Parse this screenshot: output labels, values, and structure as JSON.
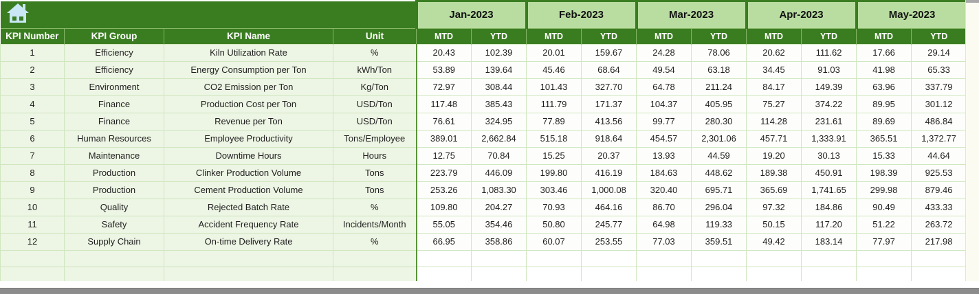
{
  "colors": {
    "header_dark_green": "#3A7D21",
    "month_light_green": "#B9DDA0",
    "row_tint_green": "#EDF5E4",
    "grid_border_green": "#CFE6BE",
    "home_icon_blue": "#C9E7F5",
    "bottom_bar_gray": "#8C8C8C"
  },
  "icons": {
    "home": "home-icon"
  },
  "table": {
    "left_headers": [
      "KPI Number",
      "KPI Group",
      "KPI Name",
      "Unit"
    ],
    "months": [
      "Jan-2023",
      "Feb-2023",
      "Mar-2023",
      "Apr-2023",
      "May-2023"
    ],
    "sub_headers": [
      "MTD",
      "YTD"
    ],
    "rows": [
      {
        "number": "1",
        "group": "Efficiency",
        "name": "Kiln Utilization Rate",
        "unit": "%",
        "values": [
          "20.43",
          "102.39",
          "20.01",
          "159.67",
          "24.28",
          "78.06",
          "20.62",
          "111.62",
          "17.66",
          "29.14"
        ]
      },
      {
        "number": "2",
        "group": "Efficiency",
        "name": "Energy Consumption per Ton",
        "unit": "kWh/Ton",
        "values": [
          "53.89",
          "139.64",
          "45.46",
          "68.64",
          "49.54",
          "63.18",
          "34.45",
          "91.03",
          "41.98",
          "65.33"
        ]
      },
      {
        "number": "3",
        "group": "Environment",
        "name": "CO2 Emission per Ton",
        "unit": "Kg/Ton",
        "values": [
          "72.97",
          "308.44",
          "101.43",
          "327.70",
          "64.78",
          "211.24",
          "84.17",
          "149.39",
          "63.96",
          "337.79"
        ]
      },
      {
        "number": "4",
        "group": "Finance",
        "name": "Production Cost per Ton",
        "unit": "USD/Ton",
        "values": [
          "117.48",
          "385.43",
          "111.79",
          "171.37",
          "104.37",
          "405.95",
          "75.27",
          "374.22",
          "89.95",
          "301.12"
        ]
      },
      {
        "number": "5",
        "group": "Finance",
        "name": "Revenue per Ton",
        "unit": "USD/Ton",
        "values": [
          "76.61",
          "324.95",
          "77.89",
          "413.56",
          "99.77",
          "280.30",
          "114.28",
          "231.61",
          "89.69",
          "486.84"
        ]
      },
      {
        "number": "6",
        "group": "Human Resources",
        "name": "Employee Productivity",
        "unit": "Tons/Employee",
        "values": [
          "389.01",
          "2,662.84",
          "515.18",
          "918.64",
          "454.57",
          "2,301.06",
          "457.71",
          "1,333.91",
          "365.51",
          "1,372.77"
        ]
      },
      {
        "number": "7",
        "group": "Maintenance",
        "name": "Downtime Hours",
        "unit": "Hours",
        "values": [
          "12.75",
          "70.84",
          "15.25",
          "20.37",
          "13.93",
          "44.59",
          "19.20",
          "30.13",
          "15.33",
          "44.64"
        ]
      },
      {
        "number": "8",
        "group": "Production",
        "name": "Clinker Production Volume",
        "unit": "Tons",
        "values": [
          "223.79",
          "446.09",
          "199.80",
          "416.19",
          "184.63",
          "448.62",
          "189.38",
          "450.91",
          "198.39",
          "925.53"
        ]
      },
      {
        "number": "9",
        "group": "Production",
        "name": "Cement Production Volume",
        "unit": "Tons",
        "values": [
          "253.26",
          "1,083.30",
          "303.46",
          "1,000.08",
          "320.40",
          "695.71",
          "365.69",
          "1,741.65",
          "299.98",
          "879.46"
        ]
      },
      {
        "number": "10",
        "group": "Quality",
        "name": "Rejected Batch Rate",
        "unit": "%",
        "values": [
          "109.80",
          "204.27",
          "70.93",
          "464.16",
          "86.70",
          "296.04",
          "97.32",
          "184.86",
          "90.49",
          "433.33"
        ]
      },
      {
        "number": "11",
        "group": "Safety",
        "name": "Accident Frequency Rate",
        "unit": "Incidents/Month",
        "values": [
          "55.05",
          "354.46",
          "50.80",
          "245.77",
          "64.98",
          "119.33",
          "50.15",
          "117.20",
          "51.22",
          "263.72"
        ]
      },
      {
        "number": "12",
        "group": "Supply Chain",
        "name": "On-time Delivery Rate",
        "unit": "%",
        "values": [
          "66.95",
          "358.86",
          "60.07",
          "253.55",
          "77.03",
          "359.51",
          "49.42",
          "183.14",
          "77.97",
          "217.98"
        ]
      }
    ],
    "empty_row_count": 2
  }
}
